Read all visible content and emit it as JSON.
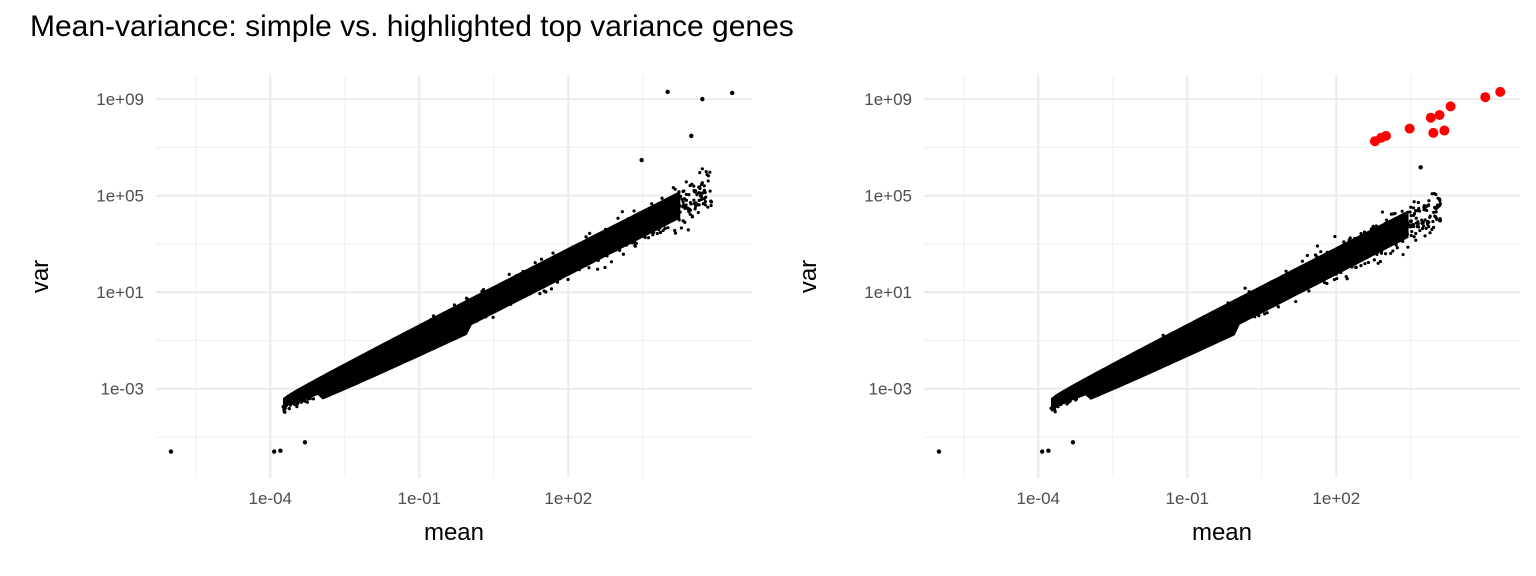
{
  "figure": {
    "title": "Mean-variance: simple vs. highlighted top variance genes"
  },
  "colors": {
    "point": "#000000",
    "highlight": "#ff0000",
    "grid": "#ebebeb",
    "tick_text": "#4d4d4d"
  },
  "chart_data": [
    {
      "type": "scatter",
      "xlabel": "mean",
      "ylabel": "var",
      "x_scale": "log10",
      "y_scale": "log10",
      "xlim": [
        5e-07,
        500000.0
      ],
      "ylim": [
        2e-07,
        10000000000.0
      ],
      "x_ticks": [
        "1e-04",
        "1e-01",
        "1e+02"
      ],
      "y_ticks": [
        "1e-03",
        "1e+01",
        "1e+05",
        "1e+09"
      ],
      "grid": true,
      "legend": "none",
      "series": [
        {
          "color": "#000000",
          "description_of_bulk": "dense cloud of ~tens of thousands of genes from mean 1e-4 to 1e+5",
          "points": [
            {
              "x": 1e-06,
              "y": 2.5e-06
            },
            {
              "x": 0.00012,
              "y": 2.5e-06
            },
            {
              "x": 0.00016,
              "y": 2.7e-06
            },
            {
              "x": 0.0005,
              "y": 6e-06
            },
            {
              "x": 10000.0,
              "y": 2000000000.0
            },
            {
              "x": 50000.0,
              "y": 1000000000.0
            },
            {
              "x": 200000.0,
              "y": 1800000000.0
            },
            {
              "x": 30000.0,
              "y": 30000000.0
            },
            {
              "x": 3000.0,
              "y": 3000000.0
            }
          ]
        }
      ]
    },
    {
      "type": "scatter",
      "xlabel": "mean",
      "ylabel": "var",
      "x_scale": "log10",
      "y_scale": "log10",
      "xlim": [
        5e-07,
        500000.0
      ],
      "ylim": [
        2e-07,
        10000000000.0
      ],
      "x_ticks": [
        "1e-04",
        "1e-01",
        "1e+02"
      ],
      "y_ticks": [
        "1e-03",
        "1e+01",
        "1e+05",
        "1e+09"
      ],
      "grid": true,
      "legend": "none",
      "series": [
        {
          "color": "#000000",
          "description_of_bulk": "dense cloud of ~tens of thousands of genes from mean 1e-4 to 1e+4",
          "points": [
            {
              "x": 1e-06,
              "y": 2.5e-06
            },
            {
              "x": 0.00012,
              "y": 2.5e-06
            },
            {
              "x": 0.00016,
              "y": 2.7e-06
            },
            {
              "x": 0.0005,
              "y": 6e-06
            },
            {
              "x": 5000.0,
              "y": 1500000.0
            }
          ]
        },
        {
          "color": "#ff0000",
          "label": "top variance genes",
          "points": [
            {
              "x": 600,
              "y": 18000000.0
            },
            {
              "x": 800,
              "y": 25000000.0
            },
            {
              "x": 1000,
              "y": 30000000.0
            },
            {
              "x": 3000,
              "y": 60000000.0
            },
            {
              "x": 8000,
              "y": 170000000.0
            },
            {
              "x": 12000,
              "y": 220000000.0
            },
            {
              "x": 20000,
              "y": 500000000.0
            },
            {
              "x": 9000,
              "y": 40000000.0
            },
            {
              "x": 15000,
              "y": 50000000.0
            },
            {
              "x": 100000,
              "y": 1200000000.0
            },
            {
              "x": 200000,
              "y": 2000000000.0
            }
          ]
        }
      ]
    }
  ]
}
